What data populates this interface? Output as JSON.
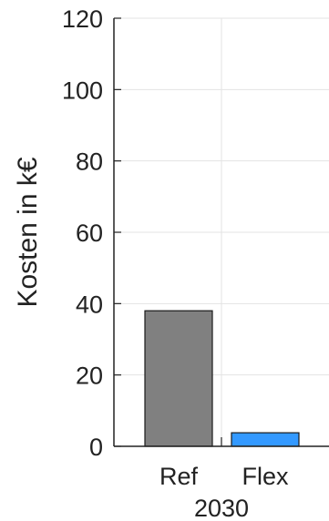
{
  "chart_data": {
    "type": "bar",
    "ylabel": "Kosten in k€",
    "ylim": [
      0,
      120
    ],
    "yticks": [
      "0",
      "20",
      "40",
      "60",
      "80",
      "100",
      "120"
    ],
    "grid": true,
    "group_label": "2030",
    "categories": [
      "Ref",
      "Flex"
    ],
    "values": [
      38,
      3.8
    ],
    "colors": [
      "#808080",
      "#3399ff"
    ]
  }
}
